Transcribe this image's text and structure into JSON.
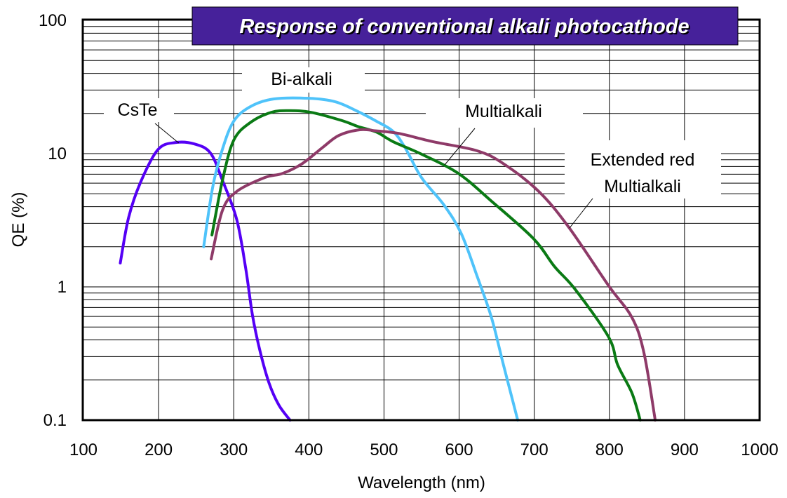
{
  "chart_data": {
    "type": "line",
    "title": "Response of conventional alkali photocathode",
    "xlabel": "Wavelength (nm)",
    "ylabel": "QE (%)",
    "xlim": [
      100,
      1000
    ],
    "ylim": [
      0.1,
      100
    ],
    "yscale": "log",
    "grid": true,
    "x_ticks": [
      "100",
      "200",
      "300",
      "400",
      "500",
      "600",
      "700",
      "800",
      "900",
      "1000"
    ],
    "y_ticks": [
      "0.1",
      "1",
      "10",
      "100"
    ],
    "title_bg_color": "#46219A",
    "series": [
      {
        "name": "CsTe",
        "color": "#5500F5",
        "x": [
          149,
          160,
          176,
          199,
          222,
          248,
          269,
          285,
          304,
          316,
          325,
          335,
          347,
          360,
          375
        ],
        "y": [
          1.51,
          3.3,
          6.1,
          10.7,
          12.1,
          11.8,
          10.1,
          6.3,
          3.2,
          1.37,
          0.61,
          0.33,
          0.19,
          0.13,
          0.1
        ]
      },
      {
        "name": "Bi-alkali",
        "color": "#4FC3FA",
        "x": [
          260,
          272,
          285,
          300,
          322,
          353,
          400,
          435,
          463,
          490,
          512,
          528,
          550,
          580,
          603,
          624,
          643,
          659,
          678
        ],
        "y": [
          2.0,
          5.6,
          10.8,
          17.5,
          22.5,
          25.7,
          26,
          24.5,
          21,
          17.5,
          14.7,
          11.1,
          6.6,
          4.1,
          2.5,
          1.2,
          0.59,
          0.26,
          0.1
        ]
      },
      {
        "name": "Multialkali",
        "color": "#0A7A14",
        "x": [
          271,
          285,
          300,
          322,
          350,
          375,
          403,
          444,
          465,
          490,
          512,
          550,
          599,
          643,
          699,
          727,
          755,
          799,
          811,
          830,
          841
        ],
        "y": [
          2.45,
          6.3,
          12.6,
          17.1,
          20.4,
          21,
          20.4,
          17.7,
          16,
          14.5,
          12.3,
          9.9,
          7.1,
          4.4,
          2.3,
          1.42,
          0.95,
          0.42,
          0.26,
          0.16,
          0.1
        ]
      },
      {
        "name": "Extended red Multialkali",
        "color": "#8E3A68",
        "x": [
          270,
          285,
          304,
          341,
          365,
          391,
          419,
          440,
          468,
          490,
          519,
          565,
          624,
          659,
          706,
          746,
          799,
          830,
          846,
          861
        ],
        "y": [
          1.62,
          3.75,
          5.2,
          6.6,
          7.1,
          8.4,
          11.2,
          13.7,
          15.1,
          14.8,
          14.2,
          12.3,
          10.5,
          8.4,
          5.2,
          2.8,
          1.02,
          0.59,
          0.32,
          0.1
        ]
      }
    ],
    "annotations": {
      "cste": "CsTe",
      "bialkali": "Bi-alkali",
      "multialkali": "Multialkali",
      "extended_line1": "Extended red",
      "extended_line2": "Multialkali"
    }
  }
}
